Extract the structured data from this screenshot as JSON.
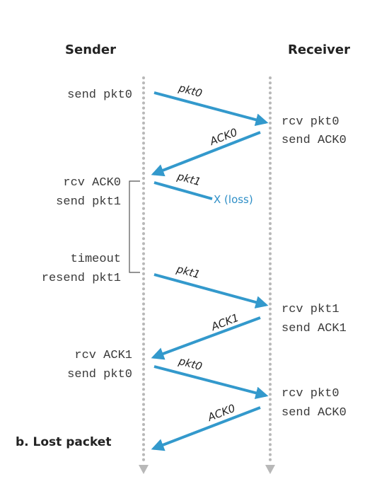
{
  "headers": {
    "sender": "Sender",
    "receiver": "Receiver"
  },
  "caption": "b. Lost packet",
  "colors": {
    "arrow": "#3399cc",
    "timeline": "#b8b8b8",
    "text": "#3a3a3a",
    "loss": "#2f8fc7"
  },
  "sender_events": [
    {
      "lines": [
        "send pkt0"
      ]
    },
    {
      "lines": [
        "rcv ACK0",
        "send pkt1"
      ]
    },
    {
      "lines": [
        "timeout",
        "resend pkt1"
      ]
    },
    {
      "lines": [
        "rcv ACK1",
        "send pkt0"
      ]
    }
  ],
  "receiver_events": [
    {
      "lines": [
        "rcv pkt0",
        "send ACK0"
      ]
    },
    {
      "lines": [
        "rcv pkt1",
        "send ACK1"
      ]
    },
    {
      "lines": [
        "rcv pkt0",
        "send ACK0"
      ]
    }
  ],
  "messages": [
    {
      "label": "pkt0",
      "direction": "sender-to-receiver"
    },
    {
      "label": "ACK0",
      "direction": "receiver-to-sender"
    },
    {
      "label": "pkt1",
      "direction": "sender-to-receiver",
      "lost": true,
      "loss_label": "X (loss)"
    },
    {
      "label": "pkt1",
      "direction": "sender-to-receiver"
    },
    {
      "label": "ACK1",
      "direction": "receiver-to-sender"
    },
    {
      "label": "pkt0",
      "direction": "sender-to-receiver"
    },
    {
      "label": "ACK0",
      "direction": "receiver-to-sender"
    }
  ]
}
